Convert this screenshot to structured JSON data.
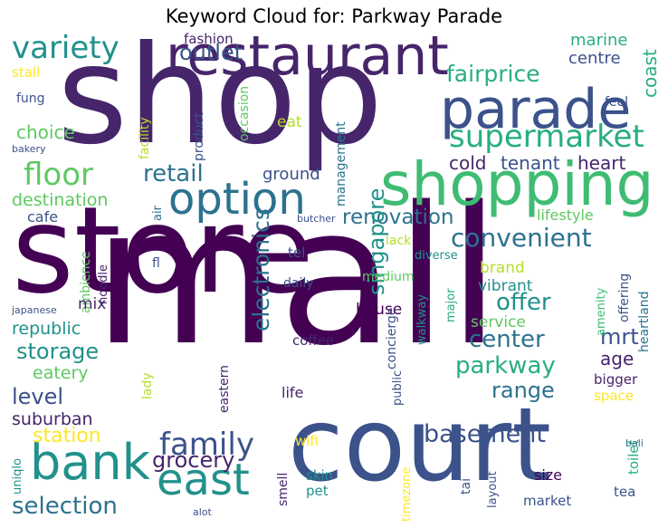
{
  "title": "Keyword Cloud for: Parkway Parade",
  "words": [
    {
      "text": "mall",
      "color": "#440154"
    },
    {
      "text": "store",
      "color": "#440154"
    },
    {
      "text": "shop",
      "color": "#46256b"
    },
    {
      "text": "court",
      "color": "#3b528b"
    },
    {
      "text": "restaurant",
      "color": "#46256b"
    },
    {
      "text": "shopping",
      "color": "#3fbc73"
    },
    {
      "text": "parade",
      "color": "#3b528b"
    },
    {
      "text": "option",
      "color": "#2c728e"
    },
    {
      "text": "bank",
      "color": "#21918c"
    },
    {
      "text": "east",
      "color": "#21918c"
    },
    {
      "text": "supermarket",
      "color": "#28ae80"
    },
    {
      "text": "family",
      "color": "#3b528b"
    },
    {
      "text": "variety",
      "color": "#21918c"
    },
    {
      "text": "floor",
      "color": "#5ec962"
    },
    {
      "text": "convenient",
      "color": "#2c728e"
    },
    {
      "text": "selection",
      "color": "#2c728e"
    },
    {
      "text": "fairprice",
      "color": "#28ae80"
    },
    {
      "text": "renovation",
      "color": "#2c728e"
    },
    {
      "text": "center",
      "color": "#2c728e"
    },
    {
      "text": "basement",
      "color": "#3b528b"
    },
    {
      "text": "parkway",
      "color": "#28ae80"
    },
    {
      "text": "retail",
      "color": "#2c728e"
    },
    {
      "text": "offer",
      "color": "#21918c"
    },
    {
      "text": "range",
      "color": "#2c728e"
    },
    {
      "text": "mrt",
      "color": "#3b528b"
    },
    {
      "text": "storage",
      "color": "#21918c"
    },
    {
      "text": "level",
      "color": "#3b528b"
    },
    {
      "text": "grocery",
      "color": "#46256b"
    },
    {
      "text": "station",
      "color": "#fde725"
    },
    {
      "text": "singapore",
      "color": "#21918c"
    },
    {
      "text": "electronics",
      "color": "#2c728e"
    },
    {
      "text": "outlet",
      "color": "#3b528b"
    },
    {
      "text": "destination",
      "color": "#5ec962"
    },
    {
      "text": "cold",
      "color": "#46256b"
    },
    {
      "text": "tenant",
      "color": "#3b528b"
    },
    {
      "text": "heart",
      "color": "#46256b"
    },
    {
      "text": "choice",
      "color": "#5ec962"
    },
    {
      "text": "age",
      "color": "#46256b"
    },
    {
      "text": "suburban",
      "color": "#46256b"
    },
    {
      "text": "republic",
      "color": "#21918c"
    },
    {
      "text": "eatery",
      "color": "#5ec962"
    },
    {
      "text": "marine",
      "color": "#28ae80"
    },
    {
      "text": "centre",
      "color": "#3b528b"
    },
    {
      "text": "coast",
      "color": "#28ae80"
    },
    {
      "text": "ground",
      "color": "#3b528b"
    },
    {
      "text": "brand",
      "color": "#b5de2b"
    },
    {
      "text": "service",
      "color": "#5ec962"
    },
    {
      "text": "vibrant",
      "color": "#21918c"
    },
    {
      "text": "house",
      "color": "#440154"
    },
    {
      "text": "lifestyle",
      "color": "#5ec962"
    },
    {
      "text": "cafe",
      "color": "#3b528b"
    },
    {
      "text": "eat",
      "color": "#b5de2b"
    },
    {
      "text": "fashion",
      "color": "#46256b"
    },
    {
      "text": "feel",
      "color": "#3b528b"
    },
    {
      "text": "fung",
      "color": "#3b528b"
    },
    {
      "text": "stall",
      "color": "#fde725"
    },
    {
      "text": "bakery",
      "color": "#3b528b"
    },
    {
      "text": "product",
      "color": "#3b528b"
    },
    {
      "text": "occasion",
      "color": "#5ec962"
    },
    {
      "text": "facility",
      "color": "#b5de2b"
    },
    {
      "text": "management",
      "color": "#2c728e"
    },
    {
      "text": "air",
      "color": "#2c728e"
    },
    {
      "text": "butcher",
      "color": "#3b528b"
    },
    {
      "text": "lack",
      "color": "#b5de2b"
    },
    {
      "text": "tel",
      "color": "#3b528b"
    },
    {
      "text": "daily",
      "color": "#3b528b"
    },
    {
      "text": "medium",
      "color": "#5ec962"
    },
    {
      "text": "diverse",
      "color": "#21918c"
    },
    {
      "text": "fl",
      "color": "#3b528b"
    },
    {
      "text": "noodle",
      "color": "#46256b"
    },
    {
      "text": "ambience",
      "color": "#5ec962"
    },
    {
      "text": "mix",
      "color": "#46256b"
    },
    {
      "text": "japanese",
      "color": "#3b528b"
    },
    {
      "text": "coffee",
      "color": "#46256b"
    },
    {
      "text": "lady",
      "color": "#b5de2b"
    },
    {
      "text": "eastern",
      "color": "#46256b"
    },
    {
      "text": "life",
      "color": "#46256b"
    },
    {
      "text": "wifi",
      "color": "#fde725"
    },
    {
      "text": "smell",
      "color": "#46256b"
    },
    {
      "text": "skin",
      "color": "#21918c"
    },
    {
      "text": "pet",
      "color": "#21918c"
    },
    {
      "text": "uniqlo",
      "color": "#21918c"
    },
    {
      "text": "concierge",
      "color": "#3b528b"
    },
    {
      "text": "walkway",
      "color": "#21918c"
    },
    {
      "text": "public",
      "color": "#3b528b"
    },
    {
      "text": "major",
      "color": "#28ae80"
    },
    {
      "text": "amenity",
      "color": "#3fbc73"
    },
    {
      "text": "offering",
      "color": "#3b528b"
    },
    {
      "text": "heartland",
      "color": "#2c728e"
    },
    {
      "text": "bigger",
      "color": "#46256b"
    },
    {
      "text": "space",
      "color": "#fde725"
    },
    {
      "text": "toilet",
      "color": "#28ae80"
    },
    {
      "text": "size",
      "color": "#440154"
    },
    {
      "text": "tea",
      "color": "#3b528b"
    },
    {
      "text": "market",
      "color": "#3b528b"
    },
    {
      "text": "tai",
      "color": "#3b528b"
    },
    {
      "text": "layout",
      "color": "#3b528b"
    },
    {
      "text": "timezone",
      "color": "#fde725"
    },
    {
      "text": "bali",
      "color": "#2c728e"
    },
    {
      "text": "alot",
      "color": "#3b528b"
    }
  ]
}
